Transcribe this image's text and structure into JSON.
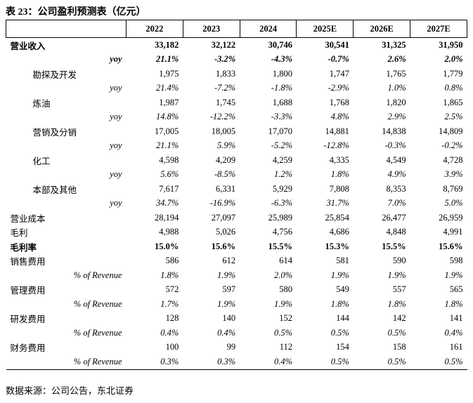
{
  "title": "表 23：公司盈利预测表（亿元）",
  "table": {
    "header": [
      "",
      "2022",
      "2023",
      "2024",
      "2025E",
      "2026E",
      "2027E"
    ],
    "rows": [
      [
        "营业收入",
        "33,182",
        "32,122",
        "30,746",
        "30,541",
        "31,325",
        "31,950"
      ],
      [
        "yoy",
        "21.1%",
        "-3.2%",
        "-4.3%",
        "-0.7%",
        "2.6%",
        "2.0%"
      ],
      [
        "勘探及开发",
        "1,975",
        "1,833",
        "1,800",
        "1,747",
        "1,765",
        "1,779"
      ],
      [
        "yoy",
        "21.4%",
        "-7.2%",
        "-1.8%",
        "-2.9%",
        "1.0%",
        "0.8%"
      ],
      [
        "炼油",
        "1,987",
        "1,745",
        "1,688",
        "1,768",
        "1,820",
        "1,865"
      ],
      [
        "yoy",
        "14.8%",
        "-12.2%",
        "-3.3%",
        "4.8%",
        "2.9%",
        "2.5%"
      ],
      [
        "营销及分销",
        "17,005",
        "18,005",
        "17,070",
        "14,881",
        "14,838",
        "14,809"
      ],
      [
        "yoy",
        "21.1%",
        "5.9%",
        "-5.2%",
        "-12.8%",
        "-0.3%",
        "-0.2%"
      ],
      [
        "化工",
        "4,598",
        "4,209",
        "4,259",
        "4,335",
        "4,549",
        "4,728"
      ],
      [
        "yoy",
        "5.6%",
        "-8.5%",
        "1.2%",
        "1.8%",
        "4.9%",
        "3.9%"
      ],
      [
        "本部及其他",
        "7,617",
        "6,331",
        "5,929",
        "7,808",
        "8,353",
        "8,769"
      ],
      [
        "yoy",
        "34.7%",
        "-16.9%",
        "-6.3%",
        "31.7%",
        "7.0%",
        "5.0%"
      ],
      [
        "营业成本",
        "28,194",
        "27,097",
        "25,989",
        "25,854",
        "26,477",
        "26,959"
      ],
      [
        "毛利",
        "4,988",
        "5,026",
        "4,756",
        "4,686",
        "4,848",
        "4,991"
      ],
      [
        "毛利率",
        "15.0%",
        "15.6%",
        "15.5%",
        "15.3%",
        "15.5%",
        "15.6%"
      ],
      [
        "销售费用",
        "586",
        "612",
        "614",
        "581",
        "590",
        "598"
      ],
      [
        "% of Revenue",
        "1.8%",
        "1.9%",
        "2.0%",
        "1.9%",
        "1.9%",
        "1.9%"
      ],
      [
        "管理费用",
        "572",
        "597",
        "580",
        "549",
        "557",
        "565"
      ],
      [
        "% of Revenue",
        "1.7%",
        "1.9%",
        "1.9%",
        "1.8%",
        "1.8%",
        "1.8%"
      ],
      [
        "研发费用",
        "128",
        "140",
        "152",
        "144",
        "142",
        "141"
      ],
      [
        "% of Revenue",
        "0.4%",
        "0.4%",
        "0.5%",
        "0.5%",
        "0.5%",
        "0.4%"
      ],
      [
        "财务费用",
        "100",
        "99",
        "112",
        "154",
        "158",
        "161"
      ],
      [
        "% of Revenue",
        "0.3%",
        "0.3%",
        "0.4%",
        "0.5%",
        "0.5%",
        "0.5%"
      ]
    ]
  },
  "source": "数据来源：公司公告，东北证券"
}
